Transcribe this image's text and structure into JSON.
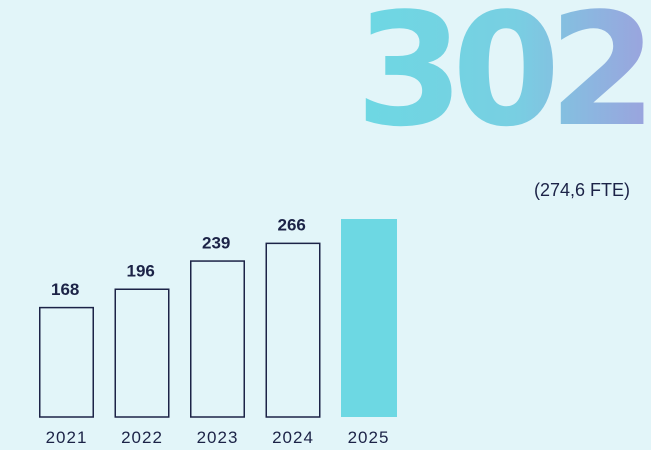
{
  "headline": {
    "value": "302",
    "sub": "(274,6 FTE)"
  },
  "colors": {
    "background": "#e2f5f9",
    "bar_outline": "#1c2347",
    "highlight_bar": "#6dd8e3",
    "baseline_start": "#6dd8e3",
    "baseline_end": "#b79be0",
    "text": "#1c2347"
  },
  "chart_data": {
    "type": "bar",
    "categories": [
      "2021",
      "2022",
      "2023",
      "2024",
      "2025"
    ],
    "values": [
      168,
      196,
      239,
      266,
      302
    ],
    "data_labels": [
      "168",
      "196",
      "239",
      "266",
      ""
    ],
    "highlight_index": 4,
    "title": "",
    "xlabel": "",
    "ylabel": "",
    "ylim": [
      0,
      302
    ],
    "grid": false,
    "legend": "none"
  }
}
